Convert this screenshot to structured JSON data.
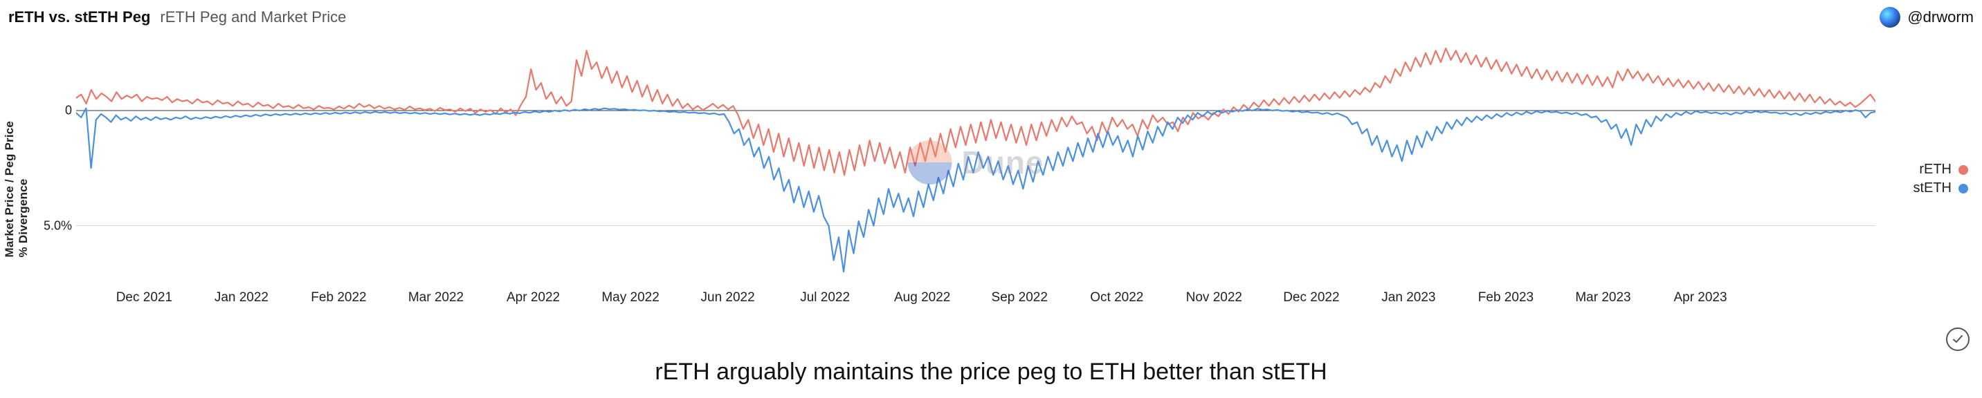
{
  "header": {
    "title_main": "rETH vs. stETH Peg",
    "title_sub": "rETH Peg and Market Price",
    "author_handle": "@drworm"
  },
  "watermark": {
    "text": "Dune"
  },
  "caption": "rETH arguably maintains the price peg to ETH better than stETH",
  "chart": {
    "type": "line",
    "background_color": "#ffffff",
    "grid_color": "#d0d0d0",
    "zero_line_color": "#333333",
    "line_width": 2.2,
    "y_axis": {
      "label": "Market Price / Peg Price % Divergence",
      "ticks": [
        {
          "value": 0,
          "label": "0"
        },
        {
          "value": -5,
          "label": "5.0%"
        }
      ],
      "ylim": [
        -7.5,
        3.0
      ]
    },
    "x_axis": {
      "labels": [
        "Dec 2021",
        "Jan 2022",
        "Feb 2022",
        "Mar 2022",
        "Apr 2022",
        "May 2022",
        "Jun 2022",
        "Jul 2022",
        "Aug 2022",
        "Sep 2022",
        "Oct 2022",
        "Nov 2022",
        "Dec 2022",
        "Jan 2023",
        "Feb 2023",
        "Mar 2023",
        "Apr 2023"
      ],
      "range_months": 18.5
    },
    "series": [
      {
        "name": "rETH",
        "color": "#e8786a",
        "values": [
          0.55,
          0.7,
          0.3,
          0.9,
          0.5,
          0.75,
          0.6,
          0.4,
          0.8,
          0.5,
          0.65,
          0.55,
          0.7,
          0.4,
          0.6,
          0.5,
          0.55,
          0.45,
          0.6,
          0.35,
          0.5,
          0.4,
          0.45,
          0.3,
          0.5,
          0.35,
          0.4,
          0.25,
          0.45,
          0.3,
          0.35,
          0.2,
          0.4,
          0.25,
          0.3,
          0.15,
          0.35,
          0.2,
          0.25,
          0.1,
          0.3,
          0.15,
          0.2,
          0.1,
          0.25,
          0.1,
          0.15,
          0.05,
          0.2,
          0.1,
          0.12,
          0.05,
          0.18,
          0.08,
          0.22,
          0.1,
          0.3,
          0.15,
          0.25,
          0.1,
          0.2,
          0.08,
          0.15,
          0.05,
          0.12,
          0.03,
          0.18,
          0.05,
          0.1,
          0.02,
          0.08,
          -0.02,
          0.12,
          0.02,
          0.05,
          -0.05,
          0.1,
          -0.02,
          0.08,
          -0.1,
          0.05,
          -0.05,
          0.02,
          -0.15,
          0.1,
          -0.08,
          0.05,
          -0.2,
          0.25,
          0.6,
          1.8,
          0.9,
          1.2,
          0.5,
          0.8,
          0.3,
          0.6,
          0.2,
          0.4,
          2.2,
          1.5,
          2.6,
          1.8,
          2.1,
          1.4,
          1.9,
          1.2,
          1.7,
          1.0,
          1.5,
          0.8,
          1.3,
          0.6,
          1.1,
          0.4,
          0.9,
          0.3,
          0.7,
          0.2,
          0.5,
          0.1,
          0.3,
          0.05,
          0.2,
          0.02,
          0.15,
          0.3,
          0.1,
          0.25,
          0.05,
          0.2,
          -0.2,
          -0.8,
          -0.4,
          -1.2,
          -0.6,
          -1.5,
          -0.8,
          -1.8,
          -1.0,
          -2.0,
          -1.2,
          -2.2,
          -1.4,
          -2.4,
          -1.5,
          -2.5,
          -1.6,
          -2.6,
          -1.7,
          -2.7,
          -1.8,
          -2.8,
          -1.7,
          -2.6,
          -1.5,
          -2.4,
          -1.3,
          -2.2,
          -1.4,
          -2.3,
          -1.6,
          -2.5,
          -1.8,
          -2.7,
          -1.6,
          -2.4,
          -1.4,
          -2.2,
          -1.2,
          -2.0,
          -1.0,
          -1.8,
          -0.8,
          -1.6,
          -0.7,
          -1.5,
          -0.6,
          -1.4,
          -0.5,
          -1.3,
          -0.4,
          -1.2,
          -0.5,
          -1.3,
          -0.6,
          -1.4,
          -0.7,
          -1.5,
          -0.6,
          -1.3,
          -0.5,
          -1.1,
          -0.4,
          -0.9,
          -0.3,
          -0.7,
          -0.25,
          -0.6,
          -0.5,
          -1.0,
          -0.7,
          -1.3,
          -0.5,
          -1.0,
          -0.3,
          -0.7,
          -0.4,
          -0.8,
          -0.6,
          -1.1,
          -0.4,
          -0.8,
          -0.2,
          -0.5,
          -0.3,
          -0.6,
          -0.5,
          -0.9,
          -0.3,
          -0.6,
          -0.1,
          -0.35,
          -0.2,
          -0.4,
          -0.1,
          -0.25,
          0.05,
          -0.15,
          0.15,
          -0.05,
          0.25,
          0.05,
          0.35,
          0.15,
          0.45,
          0.2,
          0.5,
          0.25,
          0.55,
          0.3,
          0.6,
          0.35,
          0.65,
          0.4,
          0.7,
          0.45,
          0.75,
          0.5,
          0.8,
          0.55,
          0.85,
          0.6,
          0.9,
          0.7,
          1.0,
          0.8,
          1.2,
          1.0,
          1.5,
          1.2,
          1.8,
          1.5,
          2.1,
          1.7,
          2.3,
          1.9,
          2.5,
          2.0,
          2.6,
          2.1,
          2.7,
          2.2,
          2.6,
          2.1,
          2.5,
          2.0,
          2.4,
          1.9,
          2.3,
          1.8,
          2.2,
          1.7,
          2.1,
          1.6,
          2.0,
          1.5,
          1.9,
          1.4,
          1.8,
          1.35,
          1.75,
          1.3,
          1.7,
          1.25,
          1.65,
          1.2,
          1.6,
          1.15,
          1.55,
          1.1,
          1.5,
          1.05,
          1.45,
          1.0,
          1.7,
          1.3,
          1.8,
          1.4,
          1.7,
          1.3,
          1.6,
          1.2,
          1.5,
          1.1,
          1.4,
          1.05,
          1.35,
          1.0,
          1.3,
          0.95,
          1.25,
          0.9,
          1.2,
          0.85,
          1.15,
          0.8,
          1.1,
          0.75,
          1.05,
          0.7,
          1.0,
          0.65,
          0.95,
          0.6,
          0.9,
          0.55,
          0.85,
          0.5,
          0.8,
          0.45,
          0.75,
          0.4,
          0.7,
          0.35,
          0.6,
          0.3,
          0.5,
          0.25,
          0.4,
          0.2,
          0.35,
          0.15,
          0.3,
          0.5,
          0.7,
          0.4
        ]
      },
      {
        "name": "stETH",
        "color": "#4a90e2",
        "values": [
          -0.1,
          -0.3,
          0.1,
          -2.5,
          -0.4,
          -0.15,
          -0.3,
          -0.5,
          -0.2,
          -0.4,
          -0.3,
          -0.45,
          -0.25,
          -0.4,
          -0.3,
          -0.42,
          -0.28,
          -0.38,
          -0.32,
          -0.4,
          -0.3,
          -0.35,
          -0.25,
          -0.38,
          -0.3,
          -0.36,
          -0.28,
          -0.34,
          -0.26,
          -0.32,
          -0.24,
          -0.3,
          -0.22,
          -0.28,
          -0.2,
          -0.26,
          -0.18,
          -0.24,
          -0.16,
          -0.22,
          -0.15,
          -0.2,
          -0.14,
          -0.19,
          -0.13,
          -0.18,
          -0.12,
          -0.17,
          -0.11,
          -0.16,
          -0.1,
          -0.15,
          -0.09,
          -0.14,
          -0.08,
          -0.13,
          -0.07,
          -0.12,
          -0.06,
          -0.11,
          -0.05,
          -0.1,
          -0.06,
          -0.11,
          -0.07,
          -0.12,
          -0.08,
          -0.13,
          -0.09,
          -0.14,
          -0.1,
          -0.15,
          -0.11,
          -0.16,
          -0.12,
          -0.17,
          -0.13,
          -0.18,
          -0.14,
          -0.19,
          -0.15,
          -0.2,
          -0.14,
          -0.18,
          -0.12,
          -0.16,
          -0.1,
          -0.14,
          -0.08,
          -0.12,
          -0.06,
          -0.1,
          -0.04,
          -0.08,
          -0.02,
          -0.06,
          0.0,
          -0.04,
          0.02,
          -0.02,
          0.04,
          0.0,
          0.06,
          0.02,
          0.08,
          0.04,
          0.1,
          0.06,
          0.08,
          0.04,
          0.06,
          0.02,
          0.04,
          0.0,
          0.02,
          -0.02,
          0.0,
          -0.04,
          -0.02,
          -0.06,
          -0.04,
          -0.08,
          -0.06,
          -0.1,
          -0.08,
          -0.12,
          -0.1,
          -0.15,
          -0.12,
          -0.18,
          -0.15,
          -0.5,
          -1.0,
          -0.8,
          -1.5,
          -1.2,
          -2.0,
          -1.6,
          -2.5,
          -2.0,
          -3.0,
          -2.5,
          -3.5,
          -3.0,
          -4.0,
          -3.3,
          -4.2,
          -3.5,
          -4.4,
          -3.7,
          -4.6,
          -5.0,
          -6.5,
          -5.5,
          -7.0,
          -5.2,
          -6.2,
          -4.8,
          -5.5,
          -4.3,
          -5.0,
          -3.8,
          -4.5,
          -3.4,
          -4.2,
          -3.6,
          -4.4,
          -3.8,
          -4.6,
          -3.5,
          -4.2,
          -3.2,
          -3.9,
          -2.9,
          -3.6,
          -2.6,
          -3.3,
          -2.3,
          -3.0,
          -2.0,
          -2.7,
          -1.8,
          -2.5,
          -2.0,
          -2.8,
          -2.2,
          -3.0,
          -2.4,
          -3.2,
          -2.6,
          -3.4,
          -2.4,
          -3.1,
          -2.2,
          -2.8,
          -2.0,
          -2.6,
          -1.8,
          -2.4,
          -1.6,
          -2.2,
          -1.4,
          -2.0,
          -1.2,
          -1.8,
          -1.0,
          -1.6,
          -0.9,
          -1.5,
          -1.1,
          -1.8,
          -1.3,
          -2.0,
          -1.1,
          -1.7,
          -0.9,
          -1.4,
          -0.7,
          -1.1,
          -0.5,
          -0.8,
          -0.3,
          -0.55,
          -0.2,
          -0.4,
          -0.1,
          -0.25,
          -0.05,
          -0.18,
          -0.02,
          -0.1,
          0.0,
          -0.05,
          0.02,
          -0.02,
          0.05,
          0.0,
          0.08,
          0.03,
          0.05,
          0.0,
          0.03,
          -0.02,
          0.0,
          -0.05,
          -0.02,
          -0.08,
          -0.05,
          -0.1,
          -0.08,
          -0.15,
          -0.1,
          -0.18,
          -0.12,
          -0.2,
          -0.3,
          -0.6,
          -0.5,
          -1.0,
          -0.8,
          -1.5,
          -1.1,
          -1.8,
          -1.3,
          -2.0,
          -1.5,
          -2.2,
          -1.3,
          -1.9,
          -1.1,
          -1.6,
          -0.9,
          -1.3,
          -0.7,
          -1.0,
          -0.5,
          -0.8,
          -0.4,
          -0.65,
          -0.3,
          -0.5,
          -0.25,
          -0.42,
          -0.2,
          -0.35,
          -0.15,
          -0.28,
          -0.1,
          -0.22,
          -0.08,
          -0.18,
          -0.05,
          -0.14,
          -0.03,
          -0.1,
          -0.02,
          -0.08,
          -0.05,
          -0.12,
          -0.08,
          -0.16,
          -0.1,
          -0.2,
          -0.15,
          -0.3,
          -0.25,
          -0.5,
          -0.4,
          -0.8,
          -0.6,
          -1.2,
          -0.8,
          -1.5,
          -0.6,
          -1.0,
          -0.4,
          -0.7,
          -0.25,
          -0.45,
          -0.15,
          -0.3,
          -0.1,
          -0.2,
          -0.05,
          -0.15,
          -0.02,
          -0.1,
          -0.05,
          -0.12,
          -0.08,
          -0.15,
          -0.1,
          -0.18,
          -0.08,
          -0.14,
          -0.05,
          -0.1,
          -0.03,
          -0.08,
          -0.05,
          -0.1,
          -0.08,
          -0.14,
          -0.1,
          -0.18,
          -0.12,
          -0.2,
          -0.1,
          -0.16,
          -0.08,
          -0.14,
          -0.05,
          -0.1,
          -0.03,
          -0.08,
          0.0,
          -0.05,
          0.02,
          -0.03,
          -0.3,
          -0.1,
          -0.05
        ]
      }
    ],
    "legend": {
      "position": "right",
      "items": [
        {
          "label": "rETH",
          "color": "#e8786a"
        },
        {
          "label": "stETH",
          "color": "#4a90e2"
        }
      ]
    }
  }
}
